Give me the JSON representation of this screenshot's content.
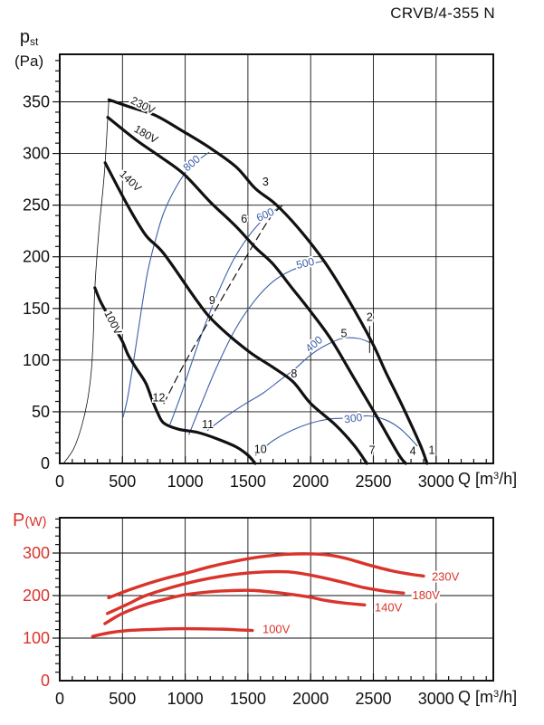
{
  "title": "CRVB/4-355 N",
  "colors": {
    "black": "#111111",
    "blue": "#3c5fa8",
    "red": "#d9342b",
    "grid": "#111111"
  },
  "axis_labels": {
    "pressure_main": "p",
    "pressure_sub": "st",
    "pressure_unit": "(Pa)",
    "flow_prefix": "Q [m",
    "flow_sup": "3",
    "flow_suffix": "/h]",
    "power_main": "P",
    "power_unit": "(W)"
  },
  "chart_data": [
    {
      "type": "line",
      "name": "static-pressure-vs-flow",
      "title": "",
      "xlabel": "Q [m3/h]",
      "ylabel": "pst (Pa)",
      "xlim": [
        0,
        3456
      ],
      "ylim": [
        0,
        396
      ],
      "xticks": [
        0,
        500,
        1000,
        1500,
        2000,
        2500,
        3000
      ],
      "yticks": [
        0,
        50,
        100,
        150,
        200,
        250,
        300,
        350
      ],
      "minor_x": 100,
      "minor_y": 10,
      "ytick_color": "black",
      "grid": true,
      "series": [
        {
          "name": "stall-boundary-line",
          "color": "black",
          "width": 0.8,
          "points": [
            [
              30,
              0
            ],
            [
              110,
              14
            ],
            [
              170,
              34
            ],
            [
              220,
              60
            ],
            [
              252,
              90
            ],
            [
              268,
              125
            ],
            [
              280,
              170
            ],
            [
              312,
              225
            ],
            [
              342,
              262
            ],
            [
              362,
              291
            ],
            [
              383,
              335
            ],
            [
              392,
              352
            ]
          ]
        },
        {
          "name": "rpm-curve-300",
          "color": "blue",
          "width": 1.1,
          "points": [
            [
              1560,
              8
            ],
            [
              1700,
              22
            ],
            [
              1850,
              32
            ],
            [
              2000,
              39
            ],
            [
              2150,
              43
            ],
            [
              2300,
              44
            ],
            [
              2460,
              46
            ],
            [
              2600,
              42
            ],
            [
              2720,
              33
            ],
            [
              2850,
              17
            ]
          ]
        },
        {
          "name": "rpm-curve-400",
          "color": "blue",
          "width": 1.1,
          "points": [
            [
              1178,
              32
            ],
            [
              1320,
              45
            ],
            [
              1470,
              57
            ],
            [
              1620,
              68
            ],
            [
              1760,
              81
            ],
            [
              1870,
              91
            ],
            [
              1990,
              104
            ],
            [
              2100,
              113
            ],
            [
              2250,
              121
            ],
            [
              2380,
              121
            ],
            [
              2473,
              117
            ]
          ]
        },
        {
          "name": "rpm-curve-500",
          "color": "blue",
          "width": 1.1,
          "points": [
            [
              1030,
              28
            ],
            [
              1130,
              58
            ],
            [
              1250,
              93
            ],
            [
              1400,
              130
            ],
            [
              1550,
              157
            ],
            [
              1700,
              176
            ],
            [
              1850,
              187
            ],
            [
              2000,
              193
            ],
            [
              2106,
              196
            ]
          ]
        },
        {
          "name": "rpm-curve-600",
          "color": "blue",
          "width": 1.1,
          "points": [
            [
              880,
              38
            ],
            [
              960,
              64
            ],
            [
              1045,
              95
            ],
            [
              1140,
              128
            ],
            [
              1250,
              162
            ],
            [
              1380,
              196
            ],
            [
              1500,
              219
            ],
            [
              1620,
              236
            ],
            [
              1748,
              248
            ]
          ]
        },
        {
          "name": "rpm-curve-800",
          "color": "blue",
          "width": 1.1,
          "points": [
            [
              505,
              45
            ],
            [
              540,
              63
            ],
            [
              590,
              100
            ],
            [
              650,
              148
            ],
            [
              700,
              185
            ],
            [
              760,
              215
            ],
            [
              830,
              243
            ],
            [
              930,
              268
            ],
            [
              1040,
              287
            ],
            [
              1188,
              301
            ]
          ]
        },
        {
          "name": "max-efficiency-dashed-line",
          "color": "black",
          "width": 1.2,
          "dash": "8 5",
          "points": [
            [
              830,
              58
            ],
            [
              1000,
              98
            ],
            [
              1200,
              140
            ],
            [
              1400,
              182
            ],
            [
              1550,
              213
            ],
            [
              1680,
              238
            ],
            [
              1785,
              251
            ]
          ]
        },
        {
          "name": "fan-curve-230v",
          "color": "black",
          "width": 3.2,
          "points": [
            [
              392,
              352
            ],
            [
              560,
              345
            ],
            [
              760,
              337
            ],
            [
              975,
              322
            ],
            [
              1190,
              306
            ],
            [
              1406,
              287
            ],
            [
              1560,
              266
            ],
            [
              1720,
              251
            ],
            [
              1900,
              228
            ],
            [
              2106,
              196
            ],
            [
              2293,
              160
            ],
            [
              2490,
              117
            ],
            [
              2600,
              88
            ],
            [
              2726,
              57
            ],
            [
              2870,
              19
            ],
            [
              2928,
              0
            ]
          ]
        },
        {
          "name": "fan-curve-180v",
          "color": "black",
          "width": 3.2,
          "points": [
            [
              383,
              335
            ],
            [
              610,
              313
            ],
            [
              800,
              297
            ],
            [
              990,
              280
            ],
            [
              1200,
              253
            ],
            [
              1400,
              230
            ],
            [
              1560,
              209
            ],
            [
              1700,
              193
            ],
            [
              1850,
              170
            ],
            [
              2000,
              147
            ],
            [
              2163,
              120
            ],
            [
              2344,
              83
            ],
            [
              2524,
              46
            ],
            [
              2700,
              9
            ],
            [
              2758,
              0
            ]
          ]
        },
        {
          "name": "fan-curve-140v",
          "color": "black",
          "width": 3.2,
          "points": [
            [
              362,
              291
            ],
            [
              540,
              250
            ],
            [
              685,
              221
            ],
            [
              830,
              203
            ],
            [
              1096,
              157
            ],
            [
              1240,
              136
            ],
            [
              1500,
              109
            ],
            [
              1700,
              93
            ],
            [
              1860,
              79
            ],
            [
              2000,
              58
            ],
            [
              2200,
              37
            ],
            [
              2350,
              17
            ],
            [
              2448,
              0
            ]
          ]
        },
        {
          "name": "fan-curve-100v",
          "color": "black",
          "width": 3.2,
          "points": [
            [
              280,
              170
            ],
            [
              324,
              157
            ],
            [
              382,
              144
            ],
            [
              440,
              131
            ],
            [
              500,
              118
            ],
            [
              545,
              105
            ],
            [
              605,
              93
            ],
            [
              685,
              78
            ],
            [
              735,
              62
            ],
            [
              780,
              49
            ],
            [
              830,
              39
            ],
            [
              950,
              33
            ],
            [
              1100,
              30
            ],
            [
              1250,
              24
            ],
            [
              1406,
              16
            ],
            [
              1500,
              8
            ],
            [
              1558,
              0
            ]
          ]
        }
      ],
      "labels": [
        {
          "text": "230V",
          "q": 660,
          "v": 346,
          "rot": 27,
          "color": "black",
          "size": 12
        },
        {
          "text": "180V",
          "q": 685,
          "v": 318,
          "rot": 30,
          "color": "black",
          "size": 12
        },
        {
          "text": "140V",
          "q": 560,
          "v": 273,
          "rot": 44,
          "color": "black",
          "size": 12
        },
        {
          "text": "100V",
          "q": 420,
          "v": 136,
          "rot": 63,
          "color": "black",
          "size": 12
        },
        {
          "text": "800",
          "q": 1055,
          "v": 290,
          "rot": -40,
          "color": "blue",
          "size": 12
        },
        {
          "text": "600",
          "q": 1640,
          "v": 240,
          "rot": -25,
          "color": "blue",
          "size": 12
        },
        {
          "text": "500",
          "q": 1958,
          "v": 193,
          "rot": -13,
          "color": "blue",
          "size": 12
        },
        {
          "text": "400",
          "q": 2030,
          "v": 115,
          "rot": -40,
          "color": "blue",
          "size": 12
        },
        {
          "text": "300",
          "q": 2340,
          "v": 43,
          "rot": -8,
          "color": "blue",
          "size": 12
        }
      ],
      "point_markers": [
        {
          "n": "1",
          "q": 2965,
          "v": 12
        },
        {
          "n": "2",
          "q": 2470,
          "v": 141
        },
        {
          "n": "3",
          "q": 1640,
          "v": 272
        },
        {
          "n": "4",
          "q": 2815,
          "v": 11
        },
        {
          "n": "5",
          "q": 2265,
          "v": 125
        },
        {
          "n": "6",
          "q": 1470,
          "v": 236
        },
        {
          "n": "7",
          "q": 2490,
          "v": 12
        },
        {
          "n": "8",
          "q": 1868,
          "v": 86
        },
        {
          "n": "9",
          "q": 1215,
          "v": 157
        },
        {
          "n": "10",
          "q": 1600,
          "v": 13
        },
        {
          "n": "11",
          "q": 1180,
          "v": 37
        },
        {
          "n": "12",
          "q": 790,
          "v": 63
        }
      ],
      "extra_lines": [
        {
          "name": "point-2-tick",
          "from": [
            2470,
            133
          ],
          "to": [
            2470,
            107
          ],
          "color": "black",
          "width": 1
        }
      ]
    },
    {
      "type": "line",
      "name": "power-vs-flow",
      "title": "",
      "xlabel": "Q [m3/h]",
      "ylabel": "P (W)",
      "xlim": [
        0,
        3456
      ],
      "ylim": [
        0,
        383
      ],
      "xticks": [
        0,
        500,
        1000,
        1500,
        2000,
        2500,
        3000
      ],
      "yticks": [
        0,
        100,
        200,
        300
      ],
      "minor_x": 100,
      "minor_y": 20,
      "ytick_color": "red",
      "grid": true,
      "series": [
        {
          "name": "power-curve-230v",
          "color": "red",
          "width": 3.4,
          "points": [
            [
              390,
              195
            ],
            [
              550,
              213
            ],
            [
              700,
              228
            ],
            [
              850,
              241
            ],
            [
              1000,
              252
            ],
            [
              1200,
              268
            ],
            [
              1400,
              281
            ],
            [
              1600,
              291
            ],
            [
              1800,
              297
            ],
            [
              2000,
              298
            ],
            [
              2150,
              295
            ],
            [
              2300,
              286
            ],
            [
              2450,
              273
            ],
            [
              2650,
              258
            ],
            [
              2800,
              250
            ],
            [
              2900,
              246
            ]
          ]
        },
        {
          "name": "power-curve-180v",
          "color": "red",
          "width": 3.4,
          "points": [
            [
              380,
              158
            ],
            [
              550,
              181
            ],
            [
              685,
              200
            ],
            [
              900,
              220
            ],
            [
              1100,
              235
            ],
            [
              1300,
              246
            ],
            [
              1500,
              253
            ],
            [
              1680,
              256
            ],
            [
              1850,
              255
            ],
            [
              2000,
              248
            ],
            [
              2130,
              240
            ],
            [
              2300,
              228
            ],
            [
              2420,
              219
            ],
            [
              2600,
              210
            ],
            [
              2740,
              206
            ]
          ]
        },
        {
          "name": "power-curve-140v",
          "color": "red",
          "width": 3.4,
          "points": [
            [
              360,
              134
            ],
            [
              500,
              158
            ],
            [
              685,
              179
            ],
            [
              850,
              192
            ],
            [
              1000,
              202
            ],
            [
              1200,
              209
            ],
            [
              1400,
              212
            ],
            [
              1550,
              212
            ],
            [
              1700,
              208
            ],
            [
              1840,
              203
            ],
            [
              2000,
              196
            ],
            [
              2110,
              189
            ],
            [
              2250,
              183
            ],
            [
              2430,
              178
            ]
          ]
        },
        {
          "name": "power-curve-100v",
          "color": "red",
          "width": 3.4,
          "points": [
            [
              262,
              104
            ],
            [
              350,
              110
            ],
            [
              450,
              115
            ],
            [
              550,
              118
            ],
            [
              700,
              120
            ],
            [
              900,
              122
            ],
            [
              1100,
              122
            ],
            [
              1300,
              121
            ],
            [
              1450,
              119
            ],
            [
              1535,
              118
            ]
          ]
        }
      ],
      "labels": [
        {
          "text": "230V",
          "q": 2965,
          "v": 242,
          "rot": 0,
          "color": "red",
          "size": 13,
          "anchor": "start"
        },
        {
          "text": "180V",
          "q": 2810,
          "v": 199,
          "rot": 0,
          "color": "red",
          "size": 13,
          "anchor": "start"
        },
        {
          "text": "140V",
          "q": 2510,
          "v": 170,
          "rot": 0,
          "color": "red",
          "size": 13,
          "anchor": "start"
        },
        {
          "text": "100V",
          "q": 1616,
          "v": 119,
          "rot": 0,
          "color": "red",
          "size": 13,
          "anchor": "start"
        }
      ],
      "point_markers": [],
      "extra_lines": []
    }
  ]
}
